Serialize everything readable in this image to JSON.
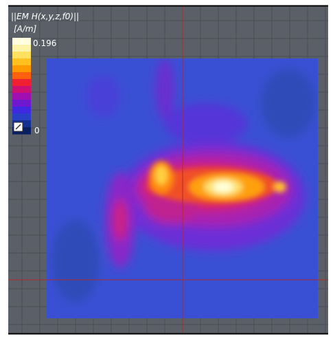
{
  "title": "||EM H(x,y,z,f0)||",
  "unit": "[A/m]",
  "colorbar": {
    "ticks": [
      0.196,
      0
    ]
  }
}
